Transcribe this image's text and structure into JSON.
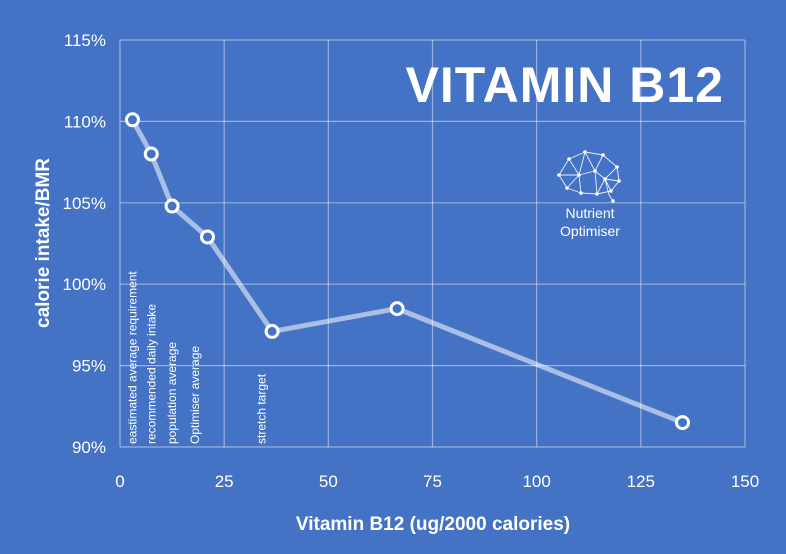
{
  "chart_data": {
    "type": "line",
    "title": "VITAMIN B12",
    "xlabel": "Vitamin B12 (ug/2000 calories)",
    "ylabel": "calorie intake/BMR",
    "xlim": [
      0,
      150
    ],
    "ylim": [
      90,
      115
    ],
    "x_ticks": [
      0,
      25,
      50,
      75,
      100,
      125,
      150
    ],
    "y_ticks": [
      90,
      95,
      100,
      105,
      110,
      115
    ],
    "y_tick_suffix": "%",
    "grid": true,
    "legend": "none",
    "x": [
      3,
      7.5,
      12.5,
      21,
      36.5,
      66.5,
      135
    ],
    "values": [
      110.1,
      108,
      104.8,
      102.9,
      97.1,
      98.5,
      91.5
    ],
    "annotations": [
      {
        "x": 3,
        "text": "eastimated average requirement"
      },
      {
        "x": 7.5,
        "text": "recommended daily intake"
      },
      {
        "x": 12.5,
        "text": "population average"
      },
      {
        "x": 18,
        "text": "Optimiser average"
      },
      {
        "x": 34,
        "text": "stretch target"
      }
    ]
  },
  "logo": {
    "line1": "Nutrient",
    "line2": "Optimiser",
    "icon": "brain-icon"
  },
  "colors": {
    "background": "#4472c4",
    "foreground": "#ffffff"
  }
}
